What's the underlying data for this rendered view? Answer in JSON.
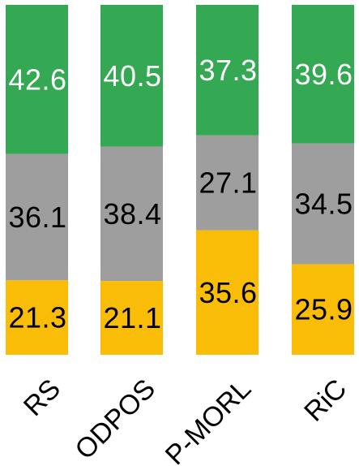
{
  "chart_data": {
    "type": "bar",
    "stacked": true,
    "normalized_total": 100,
    "categories": [
      "RS",
      "ODPOS",
      "P-MORL",
      "RiC"
    ],
    "series": [
      {
        "values": [
          21.3,
          21.1,
          35.6,
          25.9
        ],
        "color": "#f9bc07",
        "label_color": "#000000"
      },
      {
        "values": [
          36.1,
          38.4,
          27.1,
          34.5
        ],
        "color": "#9e9e9e",
        "label_color": "#000000"
      },
      {
        "values": [
          42.6,
          40.5,
          37.3,
          39.6
        ],
        "color": "#35a853",
        "label_color": "#ffffff"
      }
    ],
    "data_labels": true,
    "xtick_rotation": -45,
    "grid": false,
    "legend": "none",
    "title": "",
    "xlabel": "",
    "ylabel": ""
  }
}
